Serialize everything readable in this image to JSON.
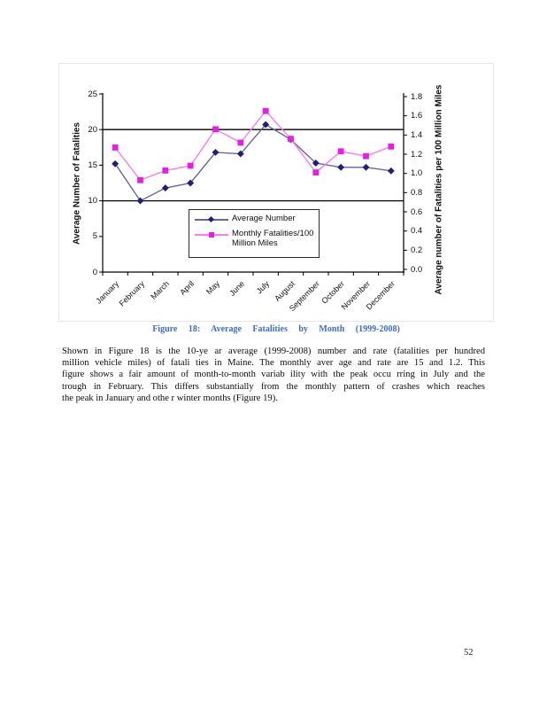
{
  "figure": {
    "caption": "Figure 18: Average Fatalities by Month (1999-2008)"
  },
  "chart_data": {
    "type": "line",
    "title": "",
    "categories": [
      "January",
      "February",
      "March",
      "April",
      "May",
      "June",
      "July",
      "August",
      "September",
      "October",
      "November",
      "December"
    ],
    "series": [
      {
        "name": "Average Number",
        "axis": "left",
        "marker": "diamond",
        "marker_color": "#1f1f7a",
        "line_color": "#666699",
        "values": [
          15.2,
          10.0,
          11.8,
          12.5,
          16.8,
          16.6,
          20.7,
          18.6,
          15.3,
          14.7,
          14.7,
          14.2
        ]
      },
      {
        "name": "Monthly Fatalities/100 Million Miles",
        "axis": "right",
        "marker": "square",
        "marker_color": "#e320e3",
        "line_color": "#f77df0",
        "values": [
          1.27,
          0.93,
          1.03,
          1.08,
          1.46,
          1.32,
          1.65,
          1.36,
          1.01,
          1.23,
          1.18,
          1.28
        ]
      }
    ],
    "left_axis": {
      "label": "Average Number of Fatalities",
      "ticks": [
        "0",
        "5",
        "10",
        "15",
        "20",
        "25"
      ],
      "min": 0,
      "max": 25
    },
    "right_axis": {
      "label": "Average number of Fatalities per 100 Million Miles",
      "ticks": [
        "0.0",
        "0.2",
        "0.4",
        "0.6",
        "0.8",
        "1.0",
        "1.2",
        "1.4",
        "1.6",
        "1.8"
      ],
      "min": 0,
      "max": 1.8
    },
    "gridlines": {
      "axis": "left",
      "values": [
        10,
        20
      ],
      "color": "#000000"
    },
    "legend_position": "inside-bottom-center",
    "grid": "horizontal-only"
  },
  "body_text": {
    "lines": [
      "Shown in Figure 18 is the 10-ye ar average (1999-2008) number and rate (fatalities per hundred",
      "million vehicle miles) of fatali ties in Maine. The monthly aver age and rate are 15 and 1.2. This",
      "figure shows a fair amount of month-to-month variab ility with the peak occu rring in July and the",
      "trough in February. This differs substantially from the monthly pattern of crashes which reaches",
      "the peak in January and othe r winter months (Figure 19)."
    ]
  },
  "page": {
    "number": "52"
  },
  "colors": {
    "caption_blue": "#3f6bcb",
    "axis_black": "#000000",
    "series1_navy": "#1f1f7a",
    "series2_magenta": "#e320e3"
  }
}
